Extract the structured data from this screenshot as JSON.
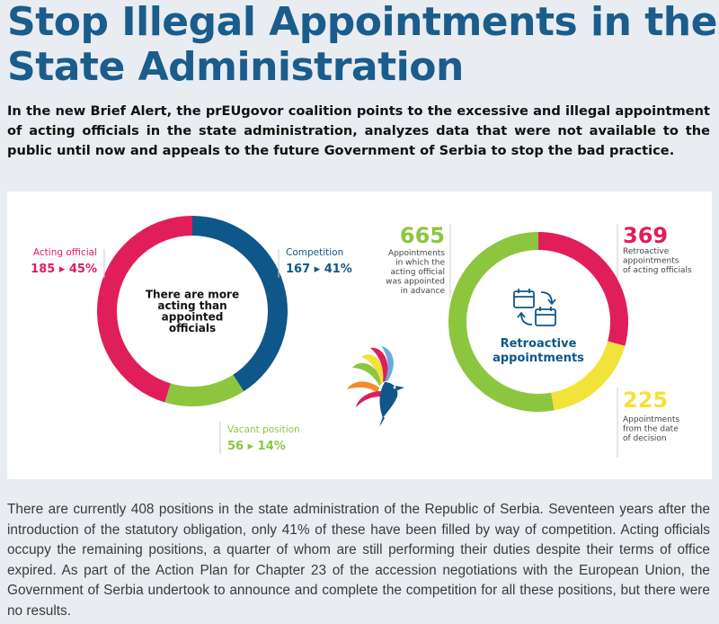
{
  "article": {
    "title": "Stop Illegal Appointments in the State Administration",
    "lead": "In the new Brief Alert, the prEUgovor coalition points to the excessive and illegal appointment of acting officials in the state administration, analyzes data that were not available to the public until now and appeals to the future Government of Serbia to stop the bad practice.",
    "body": "There are currently 408 positions in the state administration of the Republic of Serbia. Seventeen years after the introduction of the statutory obligation, only 41% of these have been filled by way of competition. Acting officials occupy the remaining positions, a quarter of whom are still performing their duties despite their terms of office expired. As part of the Action Plan for Chapter 23 of the accession negotiations with the European Union, the Government of Serbia undertook to announce and complete the competition for all these positions, but there were no results."
  },
  "colors": {
    "title": "#1a5d8c",
    "acting": "#e01e5a",
    "competition": "#0f5788",
    "vacant": "#8cc63f",
    "advance": "#8cc63f",
    "retro": "#e01e5a",
    "after_decision": "#f2e33b"
  },
  "chart_data": [
    {
      "type": "pie",
      "donut": true,
      "center_label": [
        "There are more",
        "acting than",
        "appointed",
        "officials"
      ],
      "slices": [
        {
          "name": "Competition",
          "value": 167,
          "percent": 41,
          "display": "167 ▸ 41%"
        },
        {
          "name": "Vacant position",
          "value": 56,
          "percent": 14,
          "display": "56 ▸ 14%"
        },
        {
          "name": "Acting official",
          "value": 185,
          "percent": 45,
          "display": "185 ▸ 45%"
        }
      ]
    },
    {
      "type": "pie",
      "donut": true,
      "center_label": [
        "Retroactive",
        "appointments"
      ],
      "center_icon": "calendar-arrows-icon",
      "slices": [
        {
          "name": "Retroactive appointments of acting officials",
          "value": 369,
          "display": "369",
          "label_lines": [
            "Retroactive",
            "appointments",
            "of acting officials"
          ]
        },
        {
          "name": "Appointments from the date of decision",
          "value": 225,
          "display": "225",
          "label_lines": [
            "Appointments",
            "from the date",
            "of decision"
          ]
        },
        {
          "name": "Appointments in which the acting official was appointed in advance",
          "value": 665,
          "display": "665",
          "label_lines": [
            "Appointments",
            "in which the",
            "acting official",
            "was appointed",
            "in advance"
          ]
        }
      ]
    }
  ]
}
